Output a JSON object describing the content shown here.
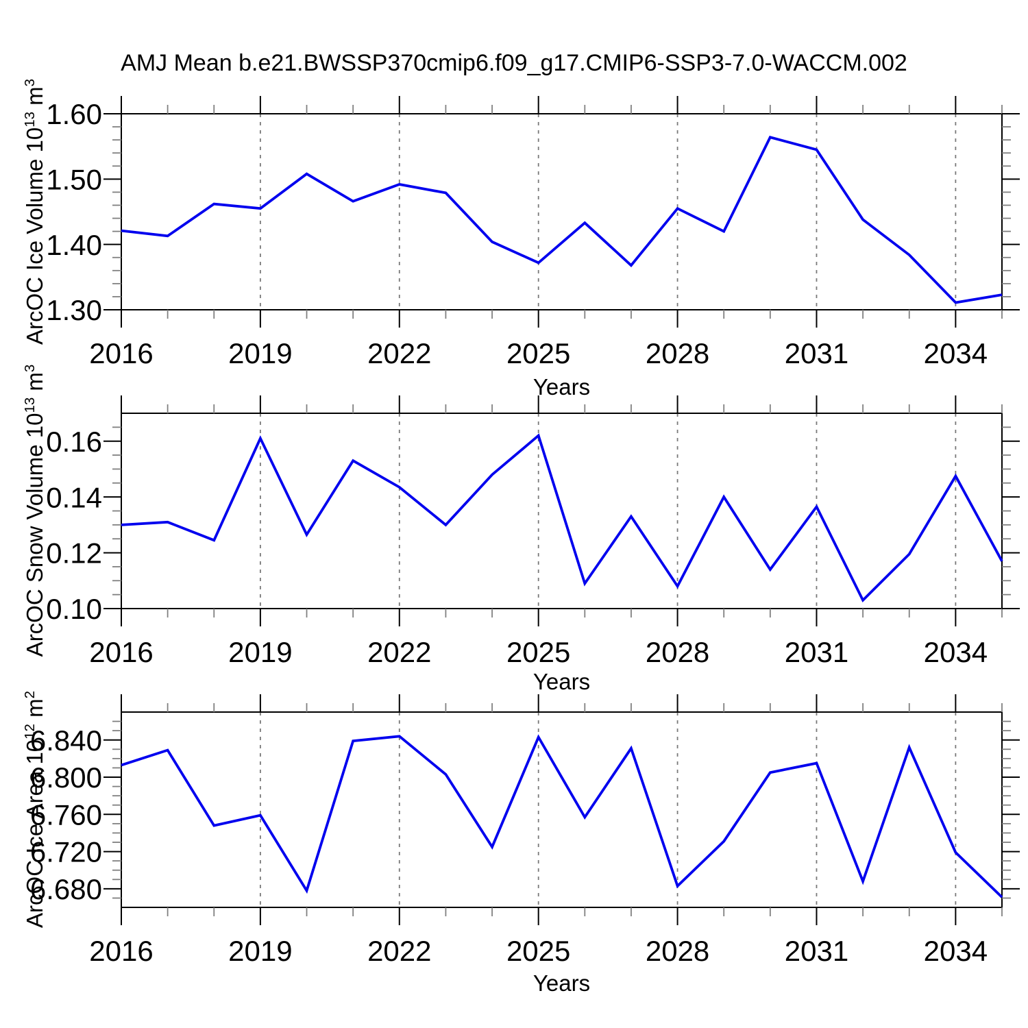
{
  "title": "AMJ Mean b.e21.BWSSP370cmip6.f09_g17.CMIP6-SSP3-7.0-WACCM.002",
  "colors": {
    "line": "#0000ee",
    "frame": "#000000",
    "grid": "#7a7a7a",
    "minor_tick": "#808080",
    "major_tick": "#000000",
    "text": "#000000",
    "background": "#ffffff"
  },
  "x_axis": {
    "label": "Years",
    "range": [
      2016,
      2035
    ],
    "major_ticks": [
      2016,
      2019,
      2022,
      2025,
      2028,
      2031,
      2034
    ],
    "major_tick_labels": [
      "2016",
      "2019",
      "2022",
      "2025",
      "2028",
      "2031",
      "2034"
    ],
    "minor_step": 1,
    "grid_at": [
      2019,
      2022,
      2025,
      2028,
      2031,
      2034
    ]
  },
  "chart_data": [
    {
      "type": "line",
      "name": "ice-volume",
      "ylabel": "ArcOC Ice Volume 10^13 m^3",
      "ylabel_parts": [
        {
          "text": "ArcOC Ice Volume 10"
        },
        {
          "text": "13",
          "sup": true
        },
        {
          "text": " m"
        },
        {
          "text": "3",
          "sup": true
        }
      ],
      "x": [
        2016,
        2017,
        2018,
        2019,
        2020,
        2021,
        2022,
        2023,
        2024,
        2025,
        2026,
        2027,
        2028,
        2029,
        2030,
        2031,
        2032,
        2033,
        2034,
        2035
      ],
      "values": [
        1.421,
        1.413,
        1.462,
        1.455,
        1.508,
        1.466,
        1.492,
        1.479,
        1.404,
        1.372,
        1.433,
        1.368,
        1.455,
        1.42,
        1.564,
        1.545,
        1.438,
        1.384,
        1.311,
        1.323
      ],
      "ylim": [
        1.3,
        1.6
      ],
      "yticks": [
        1.3,
        1.4,
        1.5,
        1.6
      ],
      "ytick_labels": [
        "1.30",
        "1.40",
        "1.50",
        "1.60"
      ],
      "yminor_step": 0.02,
      "grid": "x-dashed"
    },
    {
      "type": "line",
      "name": "snow-volume",
      "ylabel": "ArcOC Snow Volume 10^13 m^3",
      "ylabel_parts": [
        {
          "text": "ArcOC Snow Volume 10"
        },
        {
          "text": "13",
          "sup": true
        },
        {
          "text": " m"
        },
        {
          "text": "3",
          "sup": true
        }
      ],
      "x": [
        2016,
        2017,
        2018,
        2019,
        2020,
        2021,
        2022,
        2023,
        2024,
        2025,
        2026,
        2027,
        2028,
        2029,
        2030,
        2031,
        2032,
        2033,
        2034,
        2035
      ],
      "values": [
        0.13,
        0.131,
        0.1245,
        0.161,
        0.1265,
        0.153,
        0.1435,
        0.13,
        0.148,
        0.162,
        0.109,
        0.133,
        0.108,
        0.14,
        0.114,
        0.1365,
        0.103,
        0.1195,
        0.1475,
        0.117
      ],
      "ylim": [
        0.1,
        0.17
      ],
      "yticks": [
        0.1,
        0.12,
        0.14,
        0.16
      ],
      "ytick_labels": [
        "0.10",
        "0.12",
        "0.14",
        "0.16"
      ],
      "yminor_step": 0.005,
      "grid": "x-dashed"
    },
    {
      "type": "line",
      "name": "ice-area",
      "ylabel": "ArcOC Ice Area 10^12 m^2",
      "ylabel_parts": [
        {
          "text": "ArcOC Ice Area 10"
        },
        {
          "text": "12",
          "sup": true
        },
        {
          "text": " m"
        },
        {
          "text": "2",
          "sup": true
        }
      ],
      "x": [
        2016,
        2017,
        2018,
        2019,
        2020,
        2021,
        2022,
        2023,
        2024,
        2025,
        2026,
        2027,
        2028,
        2029,
        2030,
        2031,
        2032,
        2033,
        2034,
        2035
      ],
      "values": [
        6.813,
        6.829,
        6.748,
        6.759,
        6.678,
        6.839,
        6.844,
        6.803,
        6.725,
        6.843,
        6.757,
        6.831,
        6.683,
        6.731,
        6.805,
        6.815,
        6.688,
        6.832,
        6.719,
        6.671
      ],
      "ylim": [
        6.66,
        6.87
      ],
      "yticks": [
        6.68,
        6.72,
        6.76,
        6.8,
        6.84
      ],
      "ytick_labels": [
        "6.680",
        "6.720",
        "6.760",
        "6.800",
        "6.840"
      ],
      "yminor_step": 0.01,
      "grid": "x-dashed"
    }
  ]
}
